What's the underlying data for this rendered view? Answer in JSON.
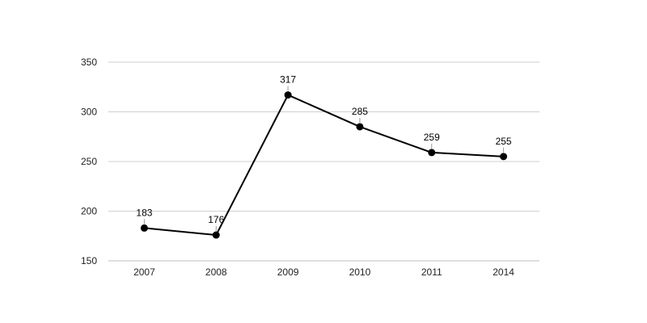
{
  "chart_data": {
    "type": "line",
    "title": "",
    "xlabel": "",
    "ylabel": "",
    "categories": [
      "2007",
      "2008",
      "2009",
      "2010",
      "2011",
      "2014"
    ],
    "series": [
      {
        "values": [
          183,
          176,
          317,
          285,
          259,
          255
        ],
        "color": "#000000"
      }
    ],
    "ylim": [
      150,
      350
    ],
    "yticks": [
      150,
      200,
      250,
      300,
      350
    ],
    "grid": true,
    "legend": "none",
    "data_labels": true
  }
}
